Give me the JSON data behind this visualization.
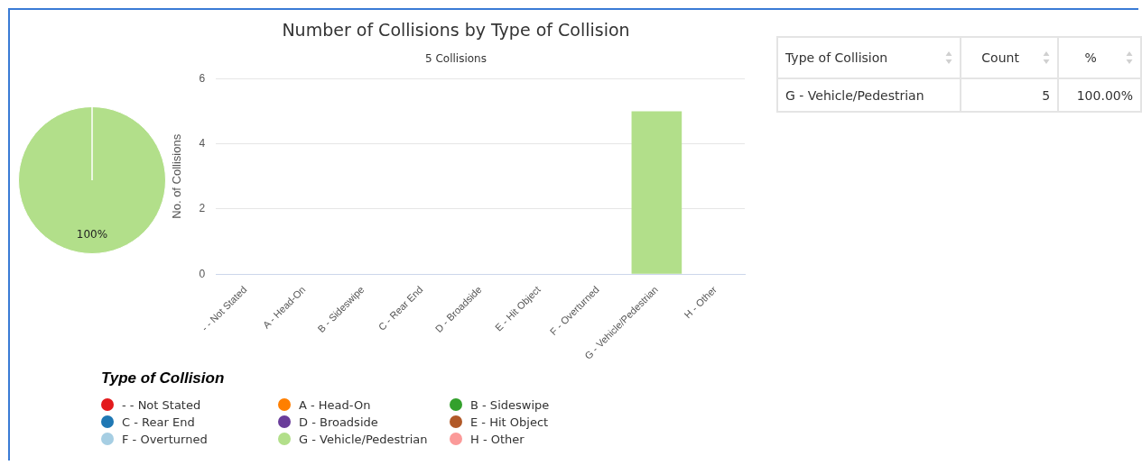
{
  "chart_data": [
    {
      "type": "pie",
      "categories": [
        "- - Not Stated",
        "A - Head-On",
        "B - Sideswipe",
        "C - Rear End",
        "D - Broadside",
        "E - Hit Object",
        "F - Overturned",
        "G - Vehicle/Pedestrian",
        "H - Other"
      ],
      "values": [
        0,
        0,
        0,
        0,
        0,
        0,
        0,
        100,
        0
      ],
      "value_labels": [
        null,
        null,
        null,
        null,
        null,
        null,
        null,
        "100%",
        null
      ],
      "colors": [
        "#e31a1c",
        "#ff7f00",
        "#33a02c",
        "#1f78b4",
        "#6a3d9a",
        "#b15928",
        "#a6cee3",
        "#b2df8a",
        "#fb9a99"
      ],
      "legend": "bottom",
      "legend_title": "Type of Collision"
    },
    {
      "type": "bar",
      "title": "Number of Collisions by Type of Collision",
      "subtitle": "5 Collisions",
      "ylabel": "No. of Collisions",
      "categories": [
        "- - Not Stated",
        "A - Head-On",
        "B - Sideswipe",
        "C - Rear End",
        "D - Broadside",
        "E - Hit Object",
        "F - Overturned",
        "G - Vehicle/Pedestrian",
        "H - Other"
      ],
      "values": [
        0,
        0,
        0,
        0,
        0,
        0,
        0,
        5,
        0
      ],
      "color": "#b2df8a",
      "ylim": [
        0,
        6
      ],
      "yticks": [
        0,
        2,
        4,
        6
      ],
      "grid": "y"
    },
    {
      "type": "other",
      "annotations": [
        "Type of Collision",
        "Count",
        "%",
        "G - Vehicle/Pedestrian",
        "5",
        "100.00%"
      ]
    }
  ]
}
